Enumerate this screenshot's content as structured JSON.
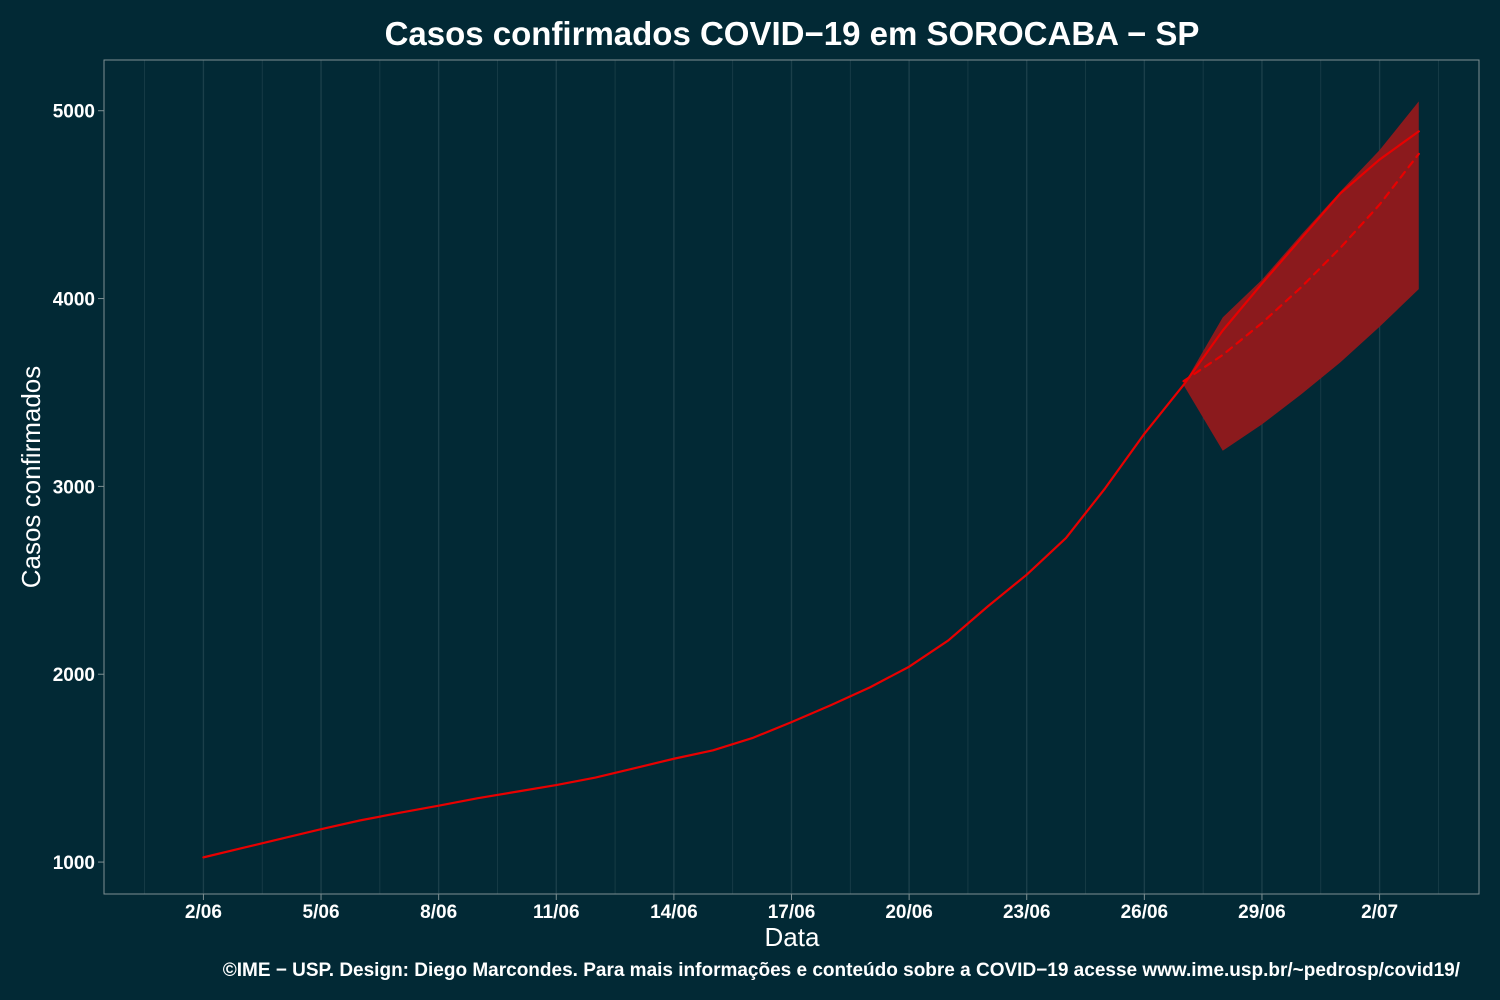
{
  "chart_data": {
    "type": "line",
    "title": "Casos confirmados COVID−19 em SOROCABA − SP",
    "xlabel": "Data",
    "ylabel": "Casos confirmados",
    "caption": "©IME − USP. Design: Diego Marcondes. Para mais informações e conteúdo sobre a COVID−19 acesse www.ime.usp.br/~pedrosp/covid19/",
    "x_axis": {
      "type": "date",
      "range": [
        "2020-06-01",
        "2020-07-03"
      ],
      "ticks": [
        {
          "date": "2020-06-02",
          "label": "2/06"
        },
        {
          "date": "2020-06-05",
          "label": "5/06"
        },
        {
          "date": "2020-06-08",
          "label": "8/06"
        },
        {
          "date": "2020-06-11",
          "label": "11/06"
        },
        {
          "date": "2020-06-14",
          "label": "14/06"
        },
        {
          "date": "2020-06-17",
          "label": "17/06"
        },
        {
          "date": "2020-06-20",
          "label": "20/06"
        },
        {
          "date": "2020-06-23",
          "label": "23/06"
        },
        {
          "date": "2020-06-26",
          "label": "26/06"
        },
        {
          "date": "2020-06-29",
          "label": "29/06"
        },
        {
          "date": "2020-07-02",
          "label": "2/07"
        }
      ]
    },
    "y_axis": {
      "range": [
        830,
        5270
      ],
      "ticks": [
        1000,
        2000,
        3000,
        4000,
        5000
      ]
    },
    "grid": "vertical",
    "colors": {
      "background": "#022935",
      "line": "#e80000",
      "band": "#8b1a1d",
      "grid": "#1b3f4a",
      "panel_border": "#7e8f92",
      "text": "#ffffff"
    },
    "series": [
      {
        "style": "solid",
        "points": [
          [
            "2020-06-02",
            1025
          ],
          [
            "2020-06-03",
            1075
          ],
          [
            "2020-06-04",
            1125
          ],
          [
            "2020-06-05",
            1175
          ],
          [
            "2020-06-06",
            1222
          ],
          [
            "2020-06-07",
            1262
          ],
          [
            "2020-06-08",
            1300
          ],
          [
            "2020-06-09",
            1340
          ],
          [
            "2020-06-10",
            1375
          ],
          [
            "2020-06-11",
            1410
          ],
          [
            "2020-06-12",
            1450
          ],
          [
            "2020-06-13",
            1500
          ],
          [
            "2020-06-14",
            1550
          ],
          [
            "2020-06-15",
            1595
          ],
          [
            "2020-06-16",
            1660
          ],
          [
            "2020-06-17",
            1745
          ],
          [
            "2020-06-18",
            1835
          ],
          [
            "2020-06-19",
            1930
          ],
          [
            "2020-06-20",
            2040
          ],
          [
            "2020-06-21",
            2180
          ],
          [
            "2020-06-22",
            2360
          ],
          [
            "2020-06-23",
            2530
          ],
          [
            "2020-06-24",
            2725
          ],
          [
            "2020-06-25",
            2990
          ],
          [
            "2020-06-26",
            3280
          ],
          [
            "2020-06-27",
            3540
          ],
          [
            "2020-06-28",
            3830
          ],
          [
            "2020-06-29",
            4080
          ],
          [
            "2020-06-30",
            4320
          ],
          [
            "2020-07-01",
            4560
          ],
          [
            "2020-07-02",
            4740
          ],
          [
            "2020-07-03",
            4890
          ]
        ]
      },
      {
        "style": "dashed",
        "points": [
          [
            "2020-06-27",
            3560
          ],
          [
            "2020-06-28",
            3700
          ],
          [
            "2020-06-29",
            3870
          ],
          [
            "2020-06-30",
            4060
          ],
          [
            "2020-07-01",
            4270
          ],
          [
            "2020-07-02",
            4500
          ],
          [
            "2020-07-03",
            4770
          ]
        ]
      }
    ],
    "band": {
      "points": [
        {
          "x": "2020-06-27",
          "lower": 3540,
          "upper": 3540
        },
        {
          "x": "2020-06-28",
          "lower": 3190,
          "upper": 3900
        },
        {
          "x": "2020-06-29",
          "lower": 3330,
          "upper": 4100
        },
        {
          "x": "2020-06-30",
          "lower": 3490,
          "upper": 4340
        },
        {
          "x": "2020-07-01",
          "lower": 3660,
          "upper": 4570
        },
        {
          "x": "2020-07-02",
          "lower": 3850,
          "upper": 4790
        },
        {
          "x": "2020-07-03",
          "lower": 4050,
          "upper": 5050
        }
      ]
    }
  }
}
